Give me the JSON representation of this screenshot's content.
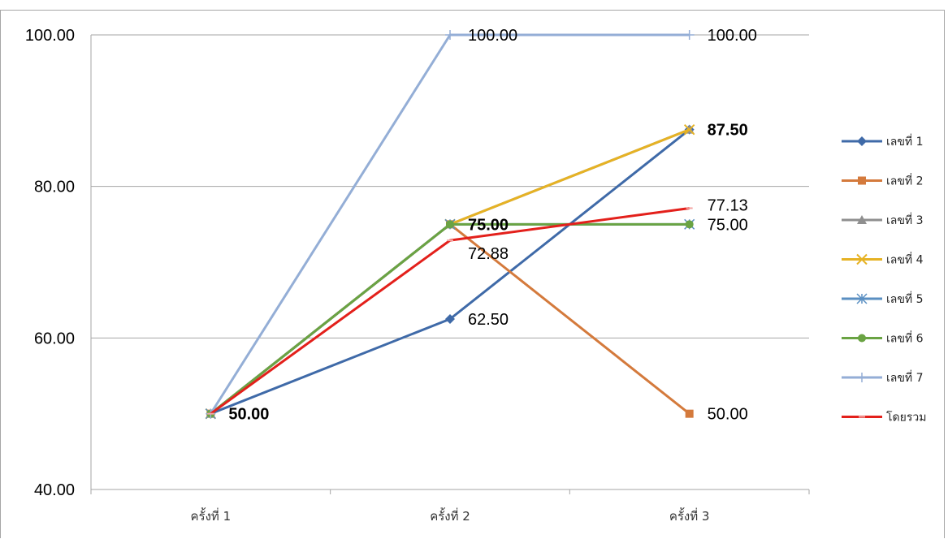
{
  "chart_data": {
    "type": "line",
    "title": "",
    "xlabel": "",
    "ylabel": "",
    "categories": [
      "ครั้งที่  1",
      "ครั้งที่  2",
      "ครั้งที่  3"
    ],
    "ylim": [
      40,
      100
    ],
    "yticks": [
      40,
      60,
      80,
      100
    ],
    "ytick_labels": [
      "40.00",
      "60.00",
      "80.00",
      "100.00"
    ],
    "grid": true,
    "legend_position": "right",
    "series": [
      {
        "name": "เลขที่ 1",
        "values": [
          50,
          62.5,
          87.5
        ],
        "color": "#3f6aa8",
        "marker": "diamond",
        "labels": [
          "",
          "62.50",
          ""
        ]
      },
      {
        "name": "เลขที่ 2",
        "values": [
          50,
          75,
          50
        ],
        "color": "#d47a3c",
        "marker": "square",
        "labels": [
          "",
          "",
          "50.00"
        ]
      },
      {
        "name": "เลขที่ 3",
        "values": [
          50,
          75,
          87.5
        ],
        "color": "#8f8f8f",
        "marker": "triangle",
        "labels": [
          "",
          "",
          "87.50"
        ]
      },
      {
        "name": "เลขที่ 4",
        "values": [
          50,
          75,
          87.5
        ],
        "color": "#e6b224",
        "marker": "x",
        "labels": [
          "",
          "",
          ""
        ]
      },
      {
        "name": "เลขที่ 5",
        "values": [
          50,
          75,
          75
        ],
        "color": "#5a8fc2",
        "marker": "asterisk",
        "labels": [
          "",
          "",
          ""
        ]
      },
      {
        "name": "เลขที่ 6",
        "values": [
          50,
          75,
          75
        ],
        "color": "#6aa343",
        "marker": "circle",
        "labels": [
          "50.00",
          "75.00",
          "75.00"
        ]
      },
      {
        "name": "เลขที่ 7",
        "values": [
          50,
          100,
          100
        ],
        "color": "#94aed6",
        "marker": "plus",
        "labels": [
          "",
          "100.00",
          "100.00"
        ]
      },
      {
        "name": "โดยรวม",
        "values": [
          50,
          72.88,
          77.13
        ],
        "color": "#e3201b",
        "marker": "dash",
        "labels": [
          "",
          "72.88",
          "77.13"
        ]
      }
    ]
  }
}
